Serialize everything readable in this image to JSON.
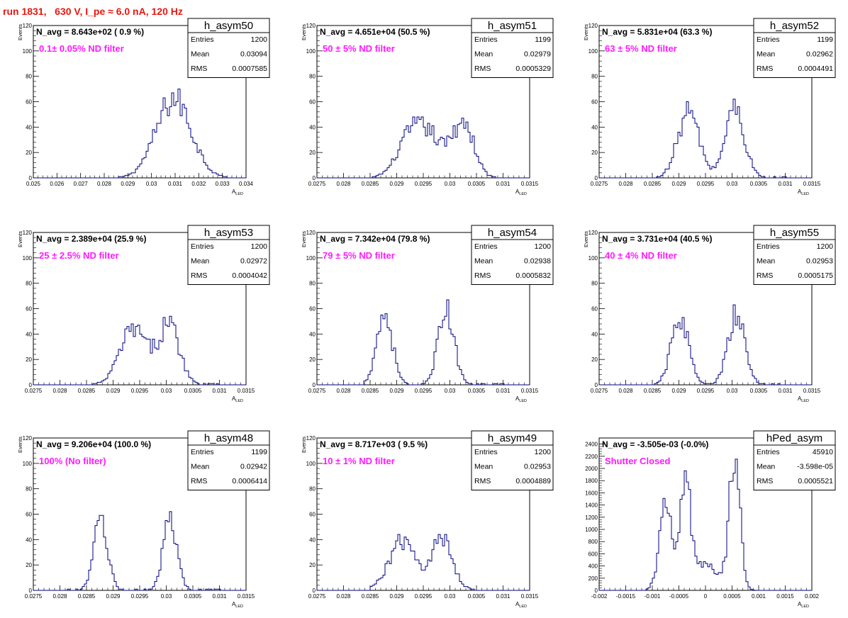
{
  "header": {
    "title": "run 1831,   630 V, I_pe ≈ 6.0 nA, 120 Hz"
  },
  "colors": {
    "title": "#e8170f",
    "annotation": "#ff1aff",
    "histogram": "#000080",
    "axis": "#000000"
  },
  "chart_data": [
    {
      "type": "histogram",
      "name": "h_asym50",
      "navg": "N_avg = 8.643e+02 ( 0.9 %)",
      "filter": "0.1± 0.05% ND filter",
      "stats": [
        {
          "label": "Entries",
          "value": "1200"
        },
        {
          "label": "Mean",
          "value": "0.03094"
        },
        {
          "label": "RMS",
          "value": "0.0007585"
        }
      ],
      "xlabel": "A",
      "xlabel_sub": "LED",
      "ylabel": "Events",
      "xlim": [
        0.025,
        0.034
      ],
      "ylim": [
        0,
        120
      ],
      "xticks": [
        "0.025",
        "0.026",
        "0.027",
        "0.028",
        "0.029",
        "0.03",
        "0.031",
        "0.032",
        "0.033",
        "0.034"
      ],
      "yticks": [
        "0",
        "20",
        "40",
        "60",
        "80",
        "100",
        "120"
      ],
      "peaks": [
        [
          0.03094,
          0.00075,
          62
        ]
      ],
      "range": [
        0.0285,
        0.0335
      ]
    },
    {
      "type": "histogram",
      "name": "h_asym51",
      "navg": "N_avg = 4.651e+04 (50.5 %)",
      "filter": "50 ± 5% ND filter",
      "stats": [
        {
          "label": "Entries",
          "value": "1199"
        },
        {
          "label": "Mean",
          "value": "0.02979"
        },
        {
          "label": "RMS",
          "value": "0.0005329"
        }
      ],
      "xlabel": "A",
      "xlabel_sub": "LED",
      "ylabel": "Events",
      "xlim": [
        0.0275,
        0.0315
      ],
      "ylim": [
        0,
        120
      ],
      "xticks": [
        "0.0275",
        "0.028",
        "0.0285",
        "0.029",
        "0.0295",
        "0.03",
        "0.0305",
        "0.031",
        "0.0315"
      ],
      "yticks": [
        "0",
        "20",
        "40",
        "60",
        "80",
        "100",
        "120"
      ],
      "peaks": [
        [
          0.02925,
          0.00025,
          30
        ],
        [
          0.02965,
          0.00025,
          27
        ],
        [
          0.03025,
          0.0002,
          44
        ]
      ],
      "range": [
        0.0285,
        0.031
      ]
    },
    {
      "type": "histogram",
      "name": "h_asym52",
      "navg": "N_avg = 5.831e+04 (63.3 %)",
      "filter": "63 ± 5% ND filter",
      "stats": [
        {
          "label": "Entries",
          "value": "1199"
        },
        {
          "label": "Mean",
          "value": "0.02962"
        },
        {
          "label": "RMS",
          "value": "0.0004491"
        }
      ],
      "xlabel": "A",
      "xlabel_sub": "LED",
      "ylabel": "Events",
      "xlim": [
        0.0275,
        0.0315
      ],
      "ylim": [
        0,
        120
      ],
      "xticks": [
        "0.0275",
        "0.028",
        "0.0285",
        "0.029",
        "0.0295",
        "0.03",
        "0.0305",
        "0.031",
        "0.0315"
      ],
      "yticks": [
        "0",
        "20",
        "40",
        "60",
        "80",
        "100",
        "120"
      ],
      "peaks": [
        [
          0.02918,
          0.0002,
          52
        ],
        [
          0.03005,
          0.00018,
          55
        ]
      ],
      "range": [
        0.0285,
        0.031
      ]
    },
    {
      "type": "histogram",
      "name": "h_asym53",
      "navg": "N_avg = 2.389e+04 (25.9 %)",
      "filter": "25 ± 2.5% ND filter",
      "stats": [
        {
          "label": "Entries",
          "value": "1200"
        },
        {
          "label": "Mean",
          "value": "0.02972"
        },
        {
          "label": "RMS",
          "value": "0.0004042"
        }
      ],
      "xlabel": "A",
      "xlabel_sub": "LED",
      "ylabel": "Events",
      "xlim": [
        0.0275,
        0.0315
      ],
      "ylim": [
        0,
        120
      ],
      "xticks": [
        "0.0275",
        "0.028",
        "0.0285",
        "0.029",
        "0.0295",
        "0.03",
        "0.0305",
        "0.031",
        "0.0315"
      ],
      "yticks": [
        "0",
        "20",
        "40",
        "60",
        "80",
        "100",
        "120"
      ],
      "peaks": [
        [
          0.02938,
          0.00025,
          44
        ],
        [
          0.03005,
          0.0002,
          47
        ]
      ],
      "range": [
        0.0286,
        0.031
      ]
    },
    {
      "type": "histogram",
      "name": "h_asym54",
      "navg": "N_avg = 7.342e+04 (79.8 %)",
      "filter": "79 ± 5% ND filter",
      "stats": [
        {
          "label": "Entries",
          "value": "1200"
        },
        {
          "label": "Mean",
          "value": "0.02938"
        },
        {
          "label": "RMS",
          "value": "0.0005832"
        }
      ],
      "xlabel": "A",
      "xlabel_sub": "LED",
      "ylabel": "Events",
      "xlim": [
        0.0275,
        0.0315
      ],
      "ylim": [
        0,
        120
      ],
      "xticks": [
        "0.0275",
        "0.028",
        "0.0285",
        "0.029",
        "0.0295",
        "0.03",
        "0.0305",
        "0.031",
        "0.0315"
      ],
      "yticks": [
        "0",
        "20",
        "40",
        "60",
        "80",
        "100",
        "120"
      ],
      "peaks": [
        [
          0.02877,
          0.00015,
          56
        ],
        [
          0.02993,
          0.00015,
          58
        ]
      ],
      "range": [
        0.0284,
        0.031
      ]
    },
    {
      "type": "histogram",
      "name": "h_asym55",
      "navg": "N_avg = 3.731e+04 (40.5 %)",
      "filter": "40 ± 4% ND filter",
      "stats": [
        {
          "label": "Entries",
          "value": "1200"
        },
        {
          "label": "Mean",
          "value": "0.02953"
        },
        {
          "label": "RMS",
          "value": "0.0005175"
        }
      ],
      "xlabel": "A",
      "xlabel_sub": "LED",
      "ylabel": "Events",
      "xlim": [
        0.0275,
        0.0315
      ],
      "ylim": [
        0,
        120
      ],
      "xticks": [
        "0.0275",
        "0.028",
        "0.0285",
        "0.029",
        "0.0295",
        "0.03",
        "0.0305",
        "0.031",
        "0.0315"
      ],
      "yticks": [
        "0",
        "20",
        "40",
        "60",
        "80",
        "100",
        "120"
      ],
      "peaks": [
        [
          0.02902,
          0.00016,
          53
        ],
        [
          0.03008,
          0.00016,
          54
        ]
      ],
      "range": [
        0.0285,
        0.031
      ]
    },
    {
      "type": "histogram",
      "name": "h_asym48",
      "navg": "N_avg = 9.206e+04 (100.0 %)",
      "filter": "100% (No filter)",
      "stats": [
        {
          "label": "Entries",
          "value": "1199"
        },
        {
          "label": "Mean",
          "value": "0.02942"
        },
        {
          "label": "RMS",
          "value": "0.0006414"
        }
      ],
      "xlabel": "A",
      "xlabel_sub": "LED",
      "ylabel": "Events",
      "xlim": [
        0.0275,
        0.0315
      ],
      "ylim": [
        0,
        120
      ],
      "xticks": [
        "0.0275",
        "0.028",
        "0.0285",
        "0.029",
        "0.0295",
        "0.03",
        "0.0305",
        "0.031",
        "0.0315"
      ],
      "yticks": [
        "0",
        "20",
        "40",
        "60",
        "80",
        "100",
        "120"
      ],
      "peaks": [
        [
          0.02877,
          0.00013,
          55
        ],
        [
          0.03007,
          0.00013,
          54
        ]
      ],
      "range": [
        0.0281,
        0.031
      ]
    },
    {
      "type": "histogram",
      "name": "h_asym49",
      "navg": "N_avg = 8.717e+03 ( 9.5 %)",
      "filter": "10 ± 1% ND filter",
      "stats": [
        {
          "label": "Entries",
          "value": "1200"
        },
        {
          "label": "Mean",
          "value": "0.02953"
        },
        {
          "label": "RMS",
          "value": "0.0004889"
        }
      ],
      "xlabel": "A",
      "xlabel_sub": "LED",
      "ylabel": "Events",
      "xlim": [
        0.0275,
        0.0315
      ],
      "ylim": [
        0,
        120
      ],
      "xticks": [
        "0.0275",
        "0.028",
        "0.0285",
        "0.029",
        "0.0295",
        "0.03",
        "0.0305",
        "0.031",
        "0.0315"
      ],
      "yticks": [
        "0",
        "20",
        "40",
        "60",
        "80",
        "100",
        "120"
      ],
      "peaks": [
        [
          0.0291,
          0.00025,
          38
        ],
        [
          0.02985,
          0.0002,
          40
        ]
      ],
      "range": [
        0.0285,
        0.0307
      ]
    },
    {
      "type": "histogram",
      "name": "hPed_asym",
      "navg": "N_avg = -3.505e-03 (-0.0%)",
      "filter": "Shutter Closed",
      "stats": [
        {
          "label": "Entries",
          "value": "45910"
        },
        {
          "label": "Mean",
          "value": "-3.598e-05"
        },
        {
          "label": "RMS",
          "value": "0.0005521"
        }
      ],
      "xlabel": "A",
      "xlabel_sub": "LED",
      "ylabel": "",
      "xlim": [
        -0.002,
        0.002
      ],
      "ylim": [
        0,
        2500
      ],
      "xticks": [
        "-0.002",
        "-0.0015",
        "-0.001",
        "-0.0005",
        "0",
        "0.0005",
        "0.001",
        "0.0015",
        "0.002"
      ],
      "yticks": [
        "0",
        "200",
        "400",
        "600",
        "800",
        "1000",
        "1200",
        "1400",
        "1600",
        "1800",
        "2000",
        "2200",
        "2400"
      ],
      "peaks": [
        [
          -0.00075,
          0.00012,
          1300
        ],
        [
          -0.00038,
          0.0001,
          1700
        ],
        [
          0.0,
          0.00025,
          400
        ],
        [
          0.00055,
          0.0001,
          2300
        ]
      ],
      "range": [
        -0.0011,
        0.001
      ]
    }
  ]
}
